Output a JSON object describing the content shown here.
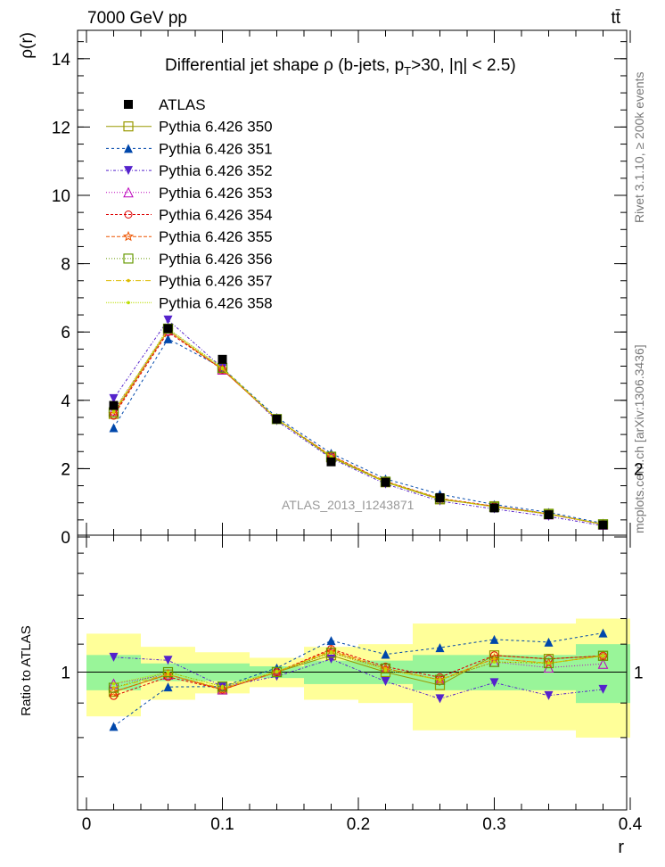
{
  "header": {
    "energy_label": "7000 GeV pp",
    "process_label": "tt̄"
  },
  "side_labels": {
    "rivet": "Rivet 3.1.10, ≥ 200k events",
    "mcplots": "mcplots.cern.ch [arXiv:1306.3436]"
  },
  "watermark": "ATLAS_2013_I1243871",
  "chart_data": {
    "type": "line",
    "title": "Differential jet shape  ρ (b-jets, pT>30, |η| < 2.5)",
    "ylabel": "ρ(r)",
    "ratio_ylabel": "Ratio to ATLAS",
    "xlabel": "r",
    "xlim": [
      0,
      0.4
    ],
    "ylim": [
      0,
      15
    ],
    "ratio_ylim": [
      0.3,
      2.3
    ],
    "x_ticks": [
      "0",
      "0.1",
      "0.2",
      "0.3",
      "0.4"
    ],
    "y_ticks": [
      "0",
      "2",
      "4",
      "6",
      "8",
      "10",
      "12",
      "14"
    ],
    "ratio_y_ticks": [
      "0.5",
      "1",
      "2"
    ],
    "x": [
      0.02,
      0.06,
      0.1,
      0.14,
      0.18,
      0.22,
      0.26,
      0.3,
      0.34,
      0.38
    ],
    "data": {
      "name": "ATLAS",
      "values": [
        3.85,
        6.1,
        5.2,
        3.45,
        2.2,
        1.6,
        1.15,
        0.85,
        0.65,
        0.35
      ],
      "band_stat": [
        0.06,
        0.03,
        0.03,
        0.02,
        0.04,
        0.04,
        0.06,
        0.06,
        0.06,
        0.1
      ],
      "band_total": [
        0.14,
        0.09,
        0.07,
        0.05,
        0.09,
        0.1,
        0.18,
        0.18,
        0.18,
        0.2
      ]
    },
    "series": [
      {
        "name": "Pythia 6.426 350",
        "color": "#999900",
        "marker": "open-square",
        "dash": "",
        "values": [
          3.6,
          6.05,
          4.9,
          3.45,
          2.33,
          1.6,
          1.1,
          0.9,
          0.68,
          0.37
        ]
      },
      {
        "name": "Pythia 6.426 351",
        "color": "#0047ab",
        "marker": "filled-triangle-up",
        "dash": "3,3",
        "values": [
          3.2,
          5.8,
          4.95,
          3.5,
          2.45,
          1.7,
          1.25,
          0.95,
          0.72,
          0.4
        ]
      },
      {
        "name": "Pythia 6.426 352",
        "color": "#5522cc",
        "marker": "filled-triangle-down",
        "dash": "3,2,1,2",
        "values": [
          4.05,
          6.35,
          4.95,
          3.4,
          2.3,
          1.55,
          1.05,
          0.82,
          0.6,
          0.33
        ]
      },
      {
        "name": "Pythia 6.426 353",
        "color": "#bb00bb",
        "marker": "open-triangle-up",
        "dash": "1,2",
        "values": [
          3.7,
          6.05,
          4.9,
          3.45,
          2.35,
          1.62,
          1.12,
          0.88,
          0.66,
          0.36
        ]
      },
      {
        "name": "Pythia 6.426 354",
        "color": "#dd0000",
        "marker": "open-circle",
        "dash": "3,2",
        "values": [
          3.55,
          6.0,
          4.9,
          3.45,
          2.38,
          1.63,
          1.13,
          0.9,
          0.68,
          0.37
        ]
      },
      {
        "name": "Pythia 6.426 355",
        "color": "#ee5500",
        "marker": "star",
        "dash": "4,2",
        "values": [
          3.6,
          6.05,
          4.9,
          3.45,
          2.37,
          1.62,
          1.12,
          0.89,
          0.67,
          0.37
        ]
      },
      {
        "name": "Pythia 6.426 356",
        "color": "#669900",
        "marker": "open-square",
        "dash": "1,2",
        "values": [
          3.65,
          6.1,
          4.95,
          3.45,
          2.35,
          1.62,
          1.12,
          0.88,
          0.67,
          0.37
        ]
      },
      {
        "name": "Pythia 6.426 357",
        "color": "#ddbb00",
        "marker": "small-dot",
        "dash": "6,2,1,2",
        "values": [
          3.65,
          6.05,
          4.92,
          3.45,
          2.36,
          1.62,
          1.12,
          0.89,
          0.67,
          0.37
        ]
      },
      {
        "name": "Pythia 6.426 358",
        "color": "#bbdd00",
        "marker": "small-dot",
        "dash": "1,1",
        "values": [
          3.7,
          6.1,
          4.95,
          3.46,
          2.35,
          1.61,
          1.12,
          0.88,
          0.67,
          0.37
        ]
      }
    ]
  }
}
